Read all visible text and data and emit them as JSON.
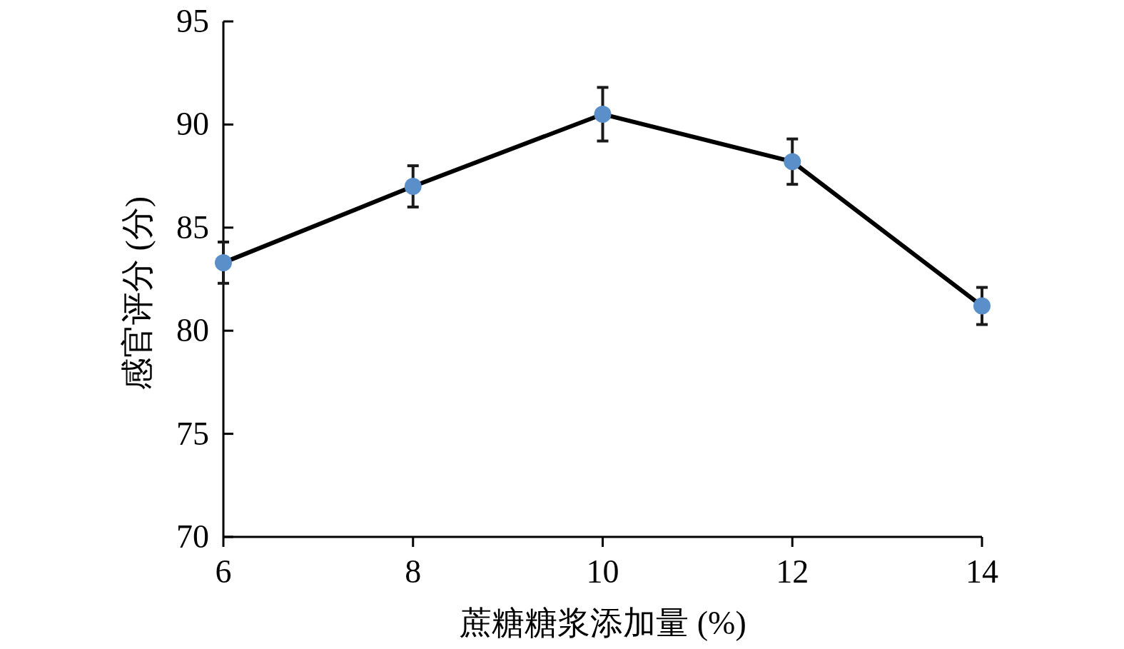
{
  "chart_data": {
    "type": "line",
    "xlabel": "蔗糖糖浆添加量 (%)",
    "ylabel": "感官评分 (分)",
    "x": [
      6,
      8,
      10,
      12,
      14
    ],
    "values": [
      83.3,
      87.0,
      90.5,
      88.2,
      81.2
    ],
    "errors": [
      1.0,
      1.0,
      1.3,
      1.1,
      0.9
    ],
    "color": "#5b8fc9",
    "marker": "circle",
    "grid": false,
    "xlim": [
      6,
      14
    ],
    "ylim": [
      70,
      95
    ],
    "xticks": [
      6,
      8,
      10,
      12,
      14
    ],
    "yticks": [
      70,
      75,
      80,
      85,
      90,
      95
    ]
  }
}
